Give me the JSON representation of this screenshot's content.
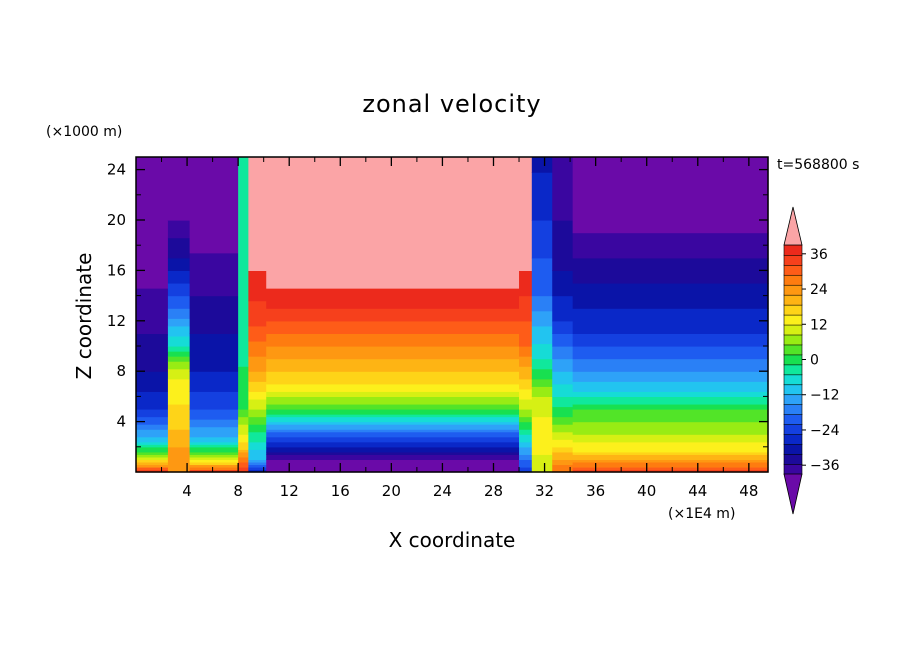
{
  "chart_data": {
    "type": "heatmap",
    "title": "zonal velocity",
    "xlabel": "X coordinate",
    "ylabel": "Z coordinate",
    "x_units": "(×1E4 m)",
    "y_units": "(×1000 m)",
    "time_label": "t=568800 s",
    "xlim": [
      0,
      49.5
    ],
    "ylim": [
      0,
      25
    ],
    "x_ticks": [
      4,
      8,
      12,
      16,
      20,
      24,
      28,
      32,
      36,
      40,
      44,
      48
    ],
    "y_ticks": [
      4,
      8,
      12,
      16,
      20,
      24
    ],
    "colorbar": {
      "levels": [
        -42,
        -39,
        -36,
        -33,
        -30,
        -27,
        -24,
        -21,
        -18,
        -15,
        -12,
        -9,
        -6,
        -3,
        0,
        3,
        6,
        9,
        12,
        15,
        18,
        21,
        24,
        27,
        30,
        33,
        36,
        39,
        42
      ],
      "colors": [
        "#6a0aa8",
        "#3a06a0",
        "#1c0a9a",
        "#0a14a8",
        "#0a28c8",
        "#1440e0",
        "#1e5cf0",
        "#2a80f6",
        "#2ea2f8",
        "#22c4f0",
        "#16dcd6",
        "#10e89c",
        "#18e050",
        "#52e428",
        "#98ec14",
        "#d6f014",
        "#fcf01c",
        "#fed418",
        "#feb414",
        "#fe9812",
        "#fe7c10",
        "#fe5c18",
        "#f6401c",
        "#ec2a1c",
        "#fba4a6"
      ],
      "tick_labels": [
        36,
        24,
        12,
        0,
        -12,
        -24,
        -36
      ],
      "extend": "both"
    },
    "bands": [
      {
        "x_range": [
          0,
          2.5
        ],
        "profile": [
          [
            0,
            30
          ],
          [
            0.6,
            18
          ],
          [
            1.6,
            0
          ],
          [
            2.8,
            -12
          ],
          [
            5,
            -24
          ],
          [
            8,
            -30
          ],
          [
            12,
            -34
          ],
          [
            16,
            -37
          ],
          [
            20,
            -40
          ],
          [
            25,
            -41
          ]
        ]
      },
      {
        "x_range": [
          2.5,
          4.2
        ],
        "profile": [
          [
            0,
            20
          ],
          [
            2,
            18
          ],
          [
            4,
            14
          ],
          [
            8,
            8
          ],
          [
            10,
            -6
          ],
          [
            13,
            -18
          ],
          [
            17,
            -30
          ],
          [
            21,
            -38
          ],
          [
            25,
            -40
          ]
        ]
      },
      {
        "x_range": [
          4.2,
          8.0
        ],
        "profile": [
          [
            0,
            30
          ],
          [
            0.6,
            16
          ],
          [
            1.6,
            0
          ],
          [
            2.8,
            -12
          ],
          [
            5,
            -21
          ],
          [
            8,
            -27
          ],
          [
            12,
            -31
          ],
          [
            16,
            -35
          ],
          [
            20,
            -38
          ],
          [
            25,
            -40
          ]
        ]
      },
      {
        "x_range": [
          8.0,
          8.8
        ],
        "profile": [
          [
            0,
            30
          ],
          [
            2,
            14
          ],
          [
            5,
            0
          ],
          [
            12,
            -6
          ],
          [
            25,
            -6
          ]
        ]
      },
      {
        "x_range": [
          8.8,
          10.2
        ],
        "profile": [
          [
            0,
            -27
          ],
          [
            1,
            -12
          ],
          [
            2.5,
            -6
          ],
          [
            5,
            6
          ],
          [
            8,
            18
          ],
          [
            12,
            28
          ],
          [
            16,
            33
          ],
          [
            25,
            36
          ]
        ]
      },
      {
        "x_range": [
          10.2,
          30.0
        ],
        "profile": [
          [
            0,
            -42
          ],
          [
            1,
            -36
          ],
          [
            2,
            -27
          ],
          [
            3.5,
            -15
          ],
          [
            5,
            0
          ],
          [
            6,
            6
          ],
          [
            7,
            12
          ],
          [
            9,
            18
          ],
          [
            11,
            24
          ],
          [
            13,
            30
          ],
          [
            16,
            36
          ],
          [
            18.5,
            42
          ],
          [
            25,
            42
          ]
        ]
      },
      {
        "x_range": [
          30.0,
          31.0
        ],
        "profile": [
          [
            0,
            -24
          ],
          [
            2,
            -12
          ],
          [
            5,
            6
          ],
          [
            10,
            24
          ],
          [
            16,
            33
          ],
          [
            25,
            36
          ]
        ]
      },
      {
        "x_range": [
          31.0,
          32.6
        ],
        "profile": [
          [
            0,
            6
          ],
          [
            3,
            12
          ],
          [
            6,
            6
          ],
          [
            9,
            -6
          ],
          [
            14,
            -18
          ],
          [
            20,
            -24
          ],
          [
            25,
            -28
          ]
        ]
      },
      {
        "x_range": [
          32.6,
          34.2
        ],
        "profile": [
          [
            0,
            24
          ],
          [
            2,
            12
          ],
          [
            4.5,
            0
          ],
          [
            6,
            -6
          ],
          [
            8,
            -12
          ],
          [
            12,
            -24
          ],
          [
            16,
            -30
          ],
          [
            20,
            -33
          ],
          [
            25,
            -35
          ]
        ]
      },
      {
        "x_range": [
          34.2,
          49.5
        ],
        "profile": [
          [
            0,
            30
          ],
          [
            0.7,
            21
          ],
          [
            1.6,
            12
          ],
          [
            3,
            6
          ],
          [
            5,
            0
          ],
          [
            6.5,
            -9
          ],
          [
            8,
            -15
          ],
          [
            11,
            -24
          ],
          [
            15,
            -30
          ],
          [
            19,
            -36
          ],
          [
            22,
            -39
          ],
          [
            25,
            -41
          ]
        ]
      }
    ]
  }
}
